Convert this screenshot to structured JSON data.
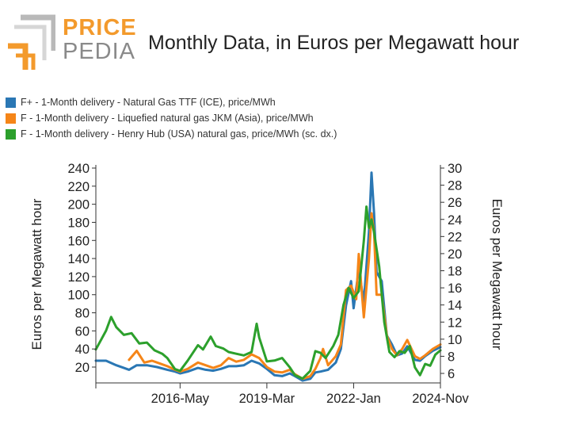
{
  "logo": {
    "word1": "PRICE",
    "word2": "PEDIA"
  },
  "chart_data": {
    "type": "line",
    "title": "Monthly Data, in Euros per Megawatt hour",
    "ylabel": "Euros per Megawatt hour",
    "y2label": "Euros per Megawatt hour",
    "ylim": [
      6,
      240
    ],
    "y2lim": [
      5,
      30
    ],
    "yticks": [
      20,
      40,
      60,
      80,
      100,
      120,
      140,
      160,
      180,
      200,
      220,
      240
    ],
    "y2ticks": [
      6,
      8,
      10,
      12,
      14,
      16,
      18,
      20,
      22,
      24,
      26,
      28,
      30
    ],
    "xrange": [
      "2013-08",
      "2024-11"
    ],
    "xticks": [
      "2016-May",
      "2019-Mar",
      "2022-Jan",
      "2024-Nov"
    ],
    "xtick_dates": [
      "2016-05",
      "2019-03",
      "2022-01",
      "2024-11"
    ],
    "legend_position": "top-left",
    "grid": false,
    "series": [
      {
        "name": "F+ - 1-Month delivery - Natural Gas TTF (ICE), price/MWh",
        "color": "#2A77B4",
        "axis": "left",
        "points": [
          [
            "2013-08",
            27
          ],
          [
            "2013-12",
            27
          ],
          [
            "2014-04",
            22
          ],
          [
            "2014-07",
            19
          ],
          [
            "2014-09",
            17
          ],
          [
            "2014-12",
            22
          ],
          [
            "2015-04",
            22
          ],
          [
            "2015-08",
            20
          ],
          [
            "2015-12",
            17
          ],
          [
            "2016-03",
            15
          ],
          [
            "2016-05",
            13
          ],
          [
            "2016-08",
            15
          ],
          [
            "2016-12",
            19
          ],
          [
            "2017-03",
            17
          ],
          [
            "2017-06",
            16
          ],
          [
            "2017-09",
            18
          ],
          [
            "2017-12",
            21
          ],
          [
            "2018-03",
            21
          ],
          [
            "2018-06",
            22
          ],
          [
            "2018-09",
            27
          ],
          [
            "2018-12",
            24
          ],
          [
            "2019-03",
            18
          ],
          [
            "2019-06",
            11
          ],
          [
            "2019-09",
            10
          ],
          [
            "2019-12",
            13
          ],
          [
            "2020-02",
            10
          ],
          [
            "2020-05",
            5
          ],
          [
            "2020-08",
            7
          ],
          [
            "2020-10",
            14
          ],
          [
            "2020-12",
            15
          ],
          [
            "2021-03",
            17
          ],
          [
            "2021-06",
            25
          ],
          [
            "2021-08",
            40
          ],
          [
            "2021-10",
            88
          ],
          [
            "2021-12",
            115
          ],
          [
            "2022-01",
            85
          ],
          [
            "2022-03",
            128
          ],
          [
            "2022-05",
            92
          ],
          [
            "2022-07",
            170
          ],
          [
            "2022-08",
            235
          ],
          [
            "2022-09",
            190
          ],
          [
            "2022-10",
            125
          ],
          [
            "2022-12",
            115
          ],
          [
            "2023-02",
            55
          ],
          [
            "2023-04",
            45
          ],
          [
            "2023-06",
            33
          ],
          [
            "2023-08",
            35
          ],
          [
            "2023-10",
            43
          ],
          [
            "2024-01",
            28
          ],
          [
            "2024-03",
            27
          ],
          [
            "2024-05",
            32
          ],
          [
            "2024-08",
            38
          ],
          [
            "2024-11",
            42
          ]
        ]
      },
      {
        "name": "F - 1-Month delivery - Liquefied natural gas JKM (Asia), price/MWh",
        "color": "#F58518",
        "axis": "left",
        "points": [
          [
            "2014-09",
            28
          ],
          [
            "2014-12",
            38
          ],
          [
            "2015-03",
            25
          ],
          [
            "2015-06",
            27
          ],
          [
            "2015-09",
            24
          ],
          [
            "2015-12",
            21
          ],
          [
            "2016-03",
            17
          ],
          [
            "2016-05",
            15
          ],
          [
            "2016-08",
            18
          ],
          [
            "2016-12",
            25
          ],
          [
            "2017-03",
            22
          ],
          [
            "2017-06",
            19
          ],
          [
            "2017-09",
            22
          ],
          [
            "2017-12",
            30
          ],
          [
            "2018-03",
            26
          ],
          [
            "2018-06",
            28
          ],
          [
            "2018-09",
            34
          ],
          [
            "2018-12",
            30
          ],
          [
            "2019-03",
            20
          ],
          [
            "2019-06",
            15
          ],
          [
            "2019-09",
            14
          ],
          [
            "2019-12",
            17
          ],
          [
            "2020-02",
            12
          ],
          [
            "2020-05",
            7
          ],
          [
            "2020-08",
            10
          ],
          [
            "2020-10",
            18
          ],
          [
            "2020-12",
            30
          ],
          [
            "2021-01",
            40
          ],
          [
            "2021-03",
            22
          ],
          [
            "2021-06",
            32
          ],
          [
            "2021-08",
            45
          ],
          [
            "2021-10",
            105
          ],
          [
            "2021-12",
            110
          ],
          [
            "2022-02",
            95
          ],
          [
            "2022-03",
            145
          ],
          [
            "2022-05",
            75
          ],
          [
            "2022-07",
            140
          ],
          [
            "2022-08",
            190
          ],
          [
            "2022-09",
            170
          ],
          [
            "2022-10",
            100
          ],
          [
            "2022-12",
            100
          ],
          [
            "2023-02",
            55
          ],
          [
            "2023-04",
            40
          ],
          [
            "2023-06",
            33
          ],
          [
            "2023-08",
            40
          ],
          [
            "2023-10",
            50
          ],
          [
            "2024-01",
            32
          ],
          [
            "2024-03",
            29
          ],
          [
            "2024-05",
            33
          ],
          [
            "2024-08",
            40
          ],
          [
            "2024-11",
            45
          ]
        ]
      },
      {
        "name": "F - 1-Month delivery - Henry Hub (USA) natural gas, price/MWh (sc. dx.)",
        "color": "#2CA02C",
        "axis": "right",
        "points": [
          [
            "2013-08",
            8.8
          ],
          [
            "2013-12",
            11
          ],
          [
            "2014-02",
            12.6
          ],
          [
            "2014-04",
            11.4
          ],
          [
            "2014-07",
            10.5
          ],
          [
            "2014-10",
            10.7
          ],
          [
            "2015-01",
            9.5
          ],
          [
            "2015-04",
            9.6
          ],
          [
            "2015-07",
            8.7
          ],
          [
            "2015-10",
            8.3
          ],
          [
            "2015-12",
            7.8
          ],
          [
            "2016-03",
            6.5
          ],
          [
            "2016-05",
            6.3
          ],
          [
            "2016-08",
            7.5
          ],
          [
            "2016-12",
            9.3
          ],
          [
            "2017-02",
            8.8
          ],
          [
            "2017-05",
            10.3
          ],
          [
            "2017-07",
            9.2
          ],
          [
            "2017-10",
            8.9
          ],
          [
            "2017-12",
            8.5
          ],
          [
            "2018-03",
            8.3
          ],
          [
            "2018-06",
            8.1
          ],
          [
            "2018-09",
            8.5
          ],
          [
            "2018-11",
            11.8
          ],
          [
            "2018-12",
            10.2
          ],
          [
            "2019-03",
            7.4
          ],
          [
            "2019-06",
            7.5
          ],
          [
            "2019-09",
            7.8
          ],
          [
            "2019-12",
            6.7
          ],
          [
            "2020-02",
            5.8
          ],
          [
            "2020-05",
            5.4
          ],
          [
            "2020-08",
            6.3
          ],
          [
            "2020-10",
            8.6
          ],
          [
            "2020-12",
            8.4
          ],
          [
            "2021-02",
            7.8
          ],
          [
            "2021-05",
            9.2
          ],
          [
            "2021-07",
            10.5
          ],
          [
            "2021-09",
            14.0
          ],
          [
            "2021-11",
            16.0
          ],
          [
            "2022-01",
            14.8
          ],
          [
            "2022-03",
            15.6
          ],
          [
            "2022-05",
            21.5
          ],
          [
            "2022-06",
            25.5
          ],
          [
            "2022-07",
            23.0
          ],
          [
            "2022-08",
            24.0
          ],
          [
            "2022-09",
            22.5
          ],
          [
            "2022-11",
            18.5
          ],
          [
            "2023-01",
            12.0
          ],
          [
            "2023-03",
            8.5
          ],
          [
            "2023-05",
            7.9
          ],
          [
            "2023-07",
            8.6
          ],
          [
            "2023-09",
            8.4
          ],
          [
            "2023-11",
            9.2
          ],
          [
            "2024-01",
            6.7
          ],
          [
            "2024-03",
            5.8
          ],
          [
            "2024-05",
            7.1
          ],
          [
            "2024-07",
            6.9
          ],
          [
            "2024-09",
            8.2
          ],
          [
            "2024-11",
            8.7
          ]
        ]
      }
    ]
  }
}
